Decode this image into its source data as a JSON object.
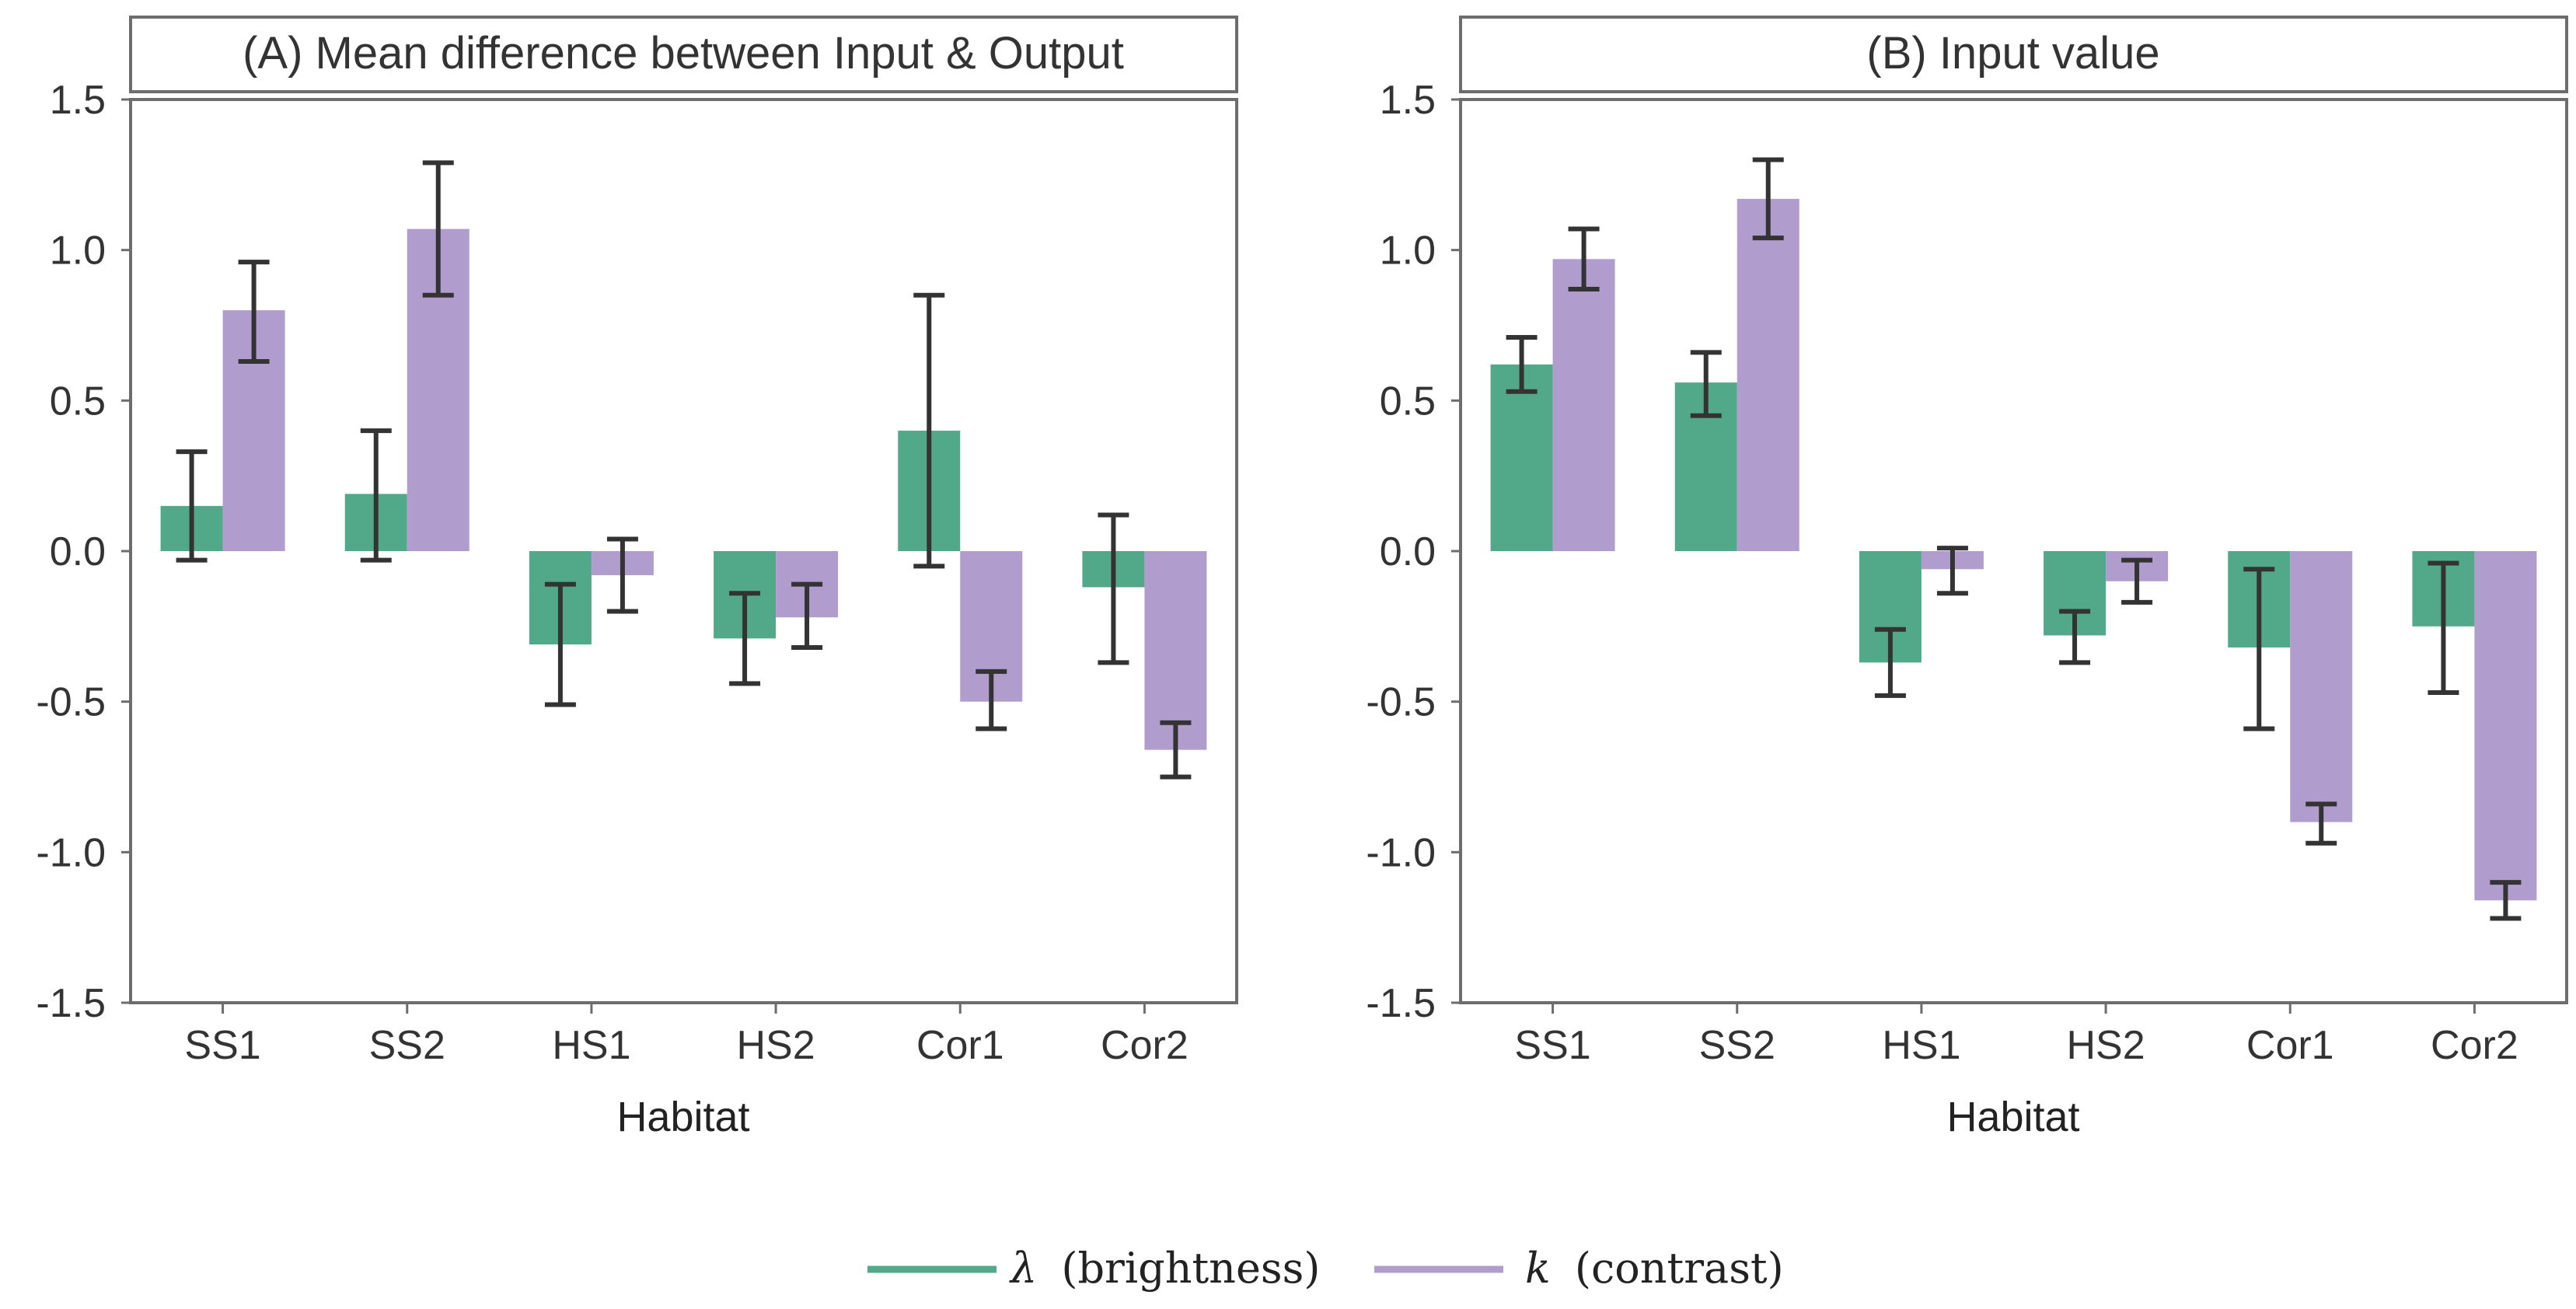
{
  "colors": {
    "lambda": "#52a98a",
    "k": "#b19cce",
    "errorbar": "#333333",
    "frame": "#6d6d6d"
  },
  "legend": {
    "items": [
      {
        "symbol": "λ",
        "label": "(brightness)",
        "color_key": "lambda"
      },
      {
        "symbol": "k",
        "label": "(contrast)",
        "color_key": "k"
      }
    ]
  },
  "chart_data": [
    {
      "type": "bar",
      "title": "(A) Mean difference between Input & Output",
      "xlabel": "Habitat",
      "ylabel": "",
      "ylim": [
        -1.5,
        1.5
      ],
      "yticks": [
        1.5,
        1.0,
        0.5,
        0.0,
        -0.5,
        -1.0,
        -1.5
      ],
      "ytick_labels": [
        "1.5",
        "1.0",
        "0.5",
        "0.0",
        "-0.5",
        "-1.0",
        "-1.5"
      ],
      "categories": [
        "SS1",
        "SS2",
        "HS1",
        "HS2",
        "Cor1",
        "Cor2"
      ],
      "series": [
        {
          "name": "λ (brightness)",
          "color_key": "lambda",
          "values": [
            0.15,
            0.19,
            -0.31,
            -0.29,
            0.4,
            -0.12
          ],
          "err_low": [
            -0.03,
            -0.03,
            -0.51,
            -0.44,
            -0.05,
            -0.37
          ],
          "err_high": [
            0.33,
            0.4,
            -0.11,
            -0.14,
            0.85,
            0.12
          ]
        },
        {
          "name": "k (contrast)",
          "color_key": "k",
          "values": [
            0.8,
            1.07,
            -0.08,
            -0.22,
            -0.5,
            -0.66
          ],
          "err_low": [
            0.63,
            0.85,
            -0.2,
            -0.32,
            -0.59,
            -0.75
          ],
          "err_high": [
            0.96,
            1.29,
            0.04,
            -0.11,
            -0.4,
            -0.57
          ]
        }
      ]
    },
    {
      "type": "bar",
      "title": "(B) Input value",
      "xlabel": "Habitat",
      "ylabel": "",
      "ylim": [
        -1.5,
        1.5
      ],
      "yticks": [
        1.5,
        1.0,
        0.5,
        0.0,
        -0.5,
        -1.0,
        -1.5
      ],
      "ytick_labels": [
        "1.5",
        "1.0",
        "0.5",
        "0.0",
        "-0.5",
        "-1.0",
        "-1.5"
      ],
      "categories": [
        "SS1",
        "SS2",
        "HS1",
        "HS2",
        "Cor1",
        "Cor2"
      ],
      "series": [
        {
          "name": "λ (brightness)",
          "color_key": "lambda",
          "values": [
            0.62,
            0.56,
            -0.37,
            -0.28,
            -0.32,
            -0.25
          ],
          "err_low": [
            0.53,
            0.45,
            -0.48,
            -0.37,
            -0.59,
            -0.47
          ],
          "err_high": [
            0.71,
            0.66,
            -0.26,
            -0.2,
            -0.06,
            -0.04
          ]
        },
        {
          "name": "k (contrast)",
          "color_key": "k",
          "values": [
            0.97,
            1.17,
            -0.06,
            -0.1,
            -0.9,
            -1.16
          ],
          "err_low": [
            0.87,
            1.04,
            -0.14,
            -0.17,
            -0.97,
            -1.22
          ],
          "err_high": [
            1.07,
            1.3,
            0.01,
            -0.03,
            -0.84,
            -1.1
          ]
        }
      ]
    }
  ]
}
